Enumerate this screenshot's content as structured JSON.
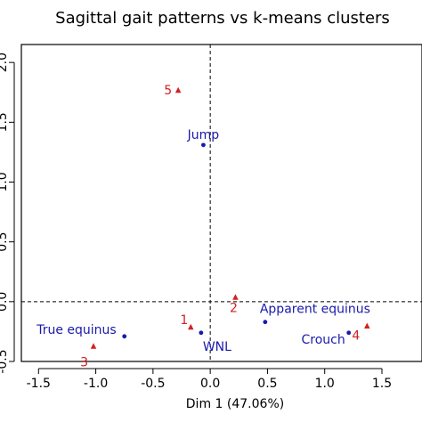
{
  "chart_data": {
    "type": "scatter",
    "title": "Sagittal gait patterns vs k-means clusters",
    "xlabel": "Dim 1 (47.06%)",
    "ylabel": "",
    "xlim": [
      -1.65,
      1.85
    ],
    "ylim": [
      -0.5,
      2.15
    ],
    "x_ticks": [
      -1.5,
      -1.0,
      -0.5,
      0.0,
      0.5,
      1.0,
      1.5
    ],
    "x_tick_labels": [
      "-1.5",
      "-1.0",
      "-0.5",
      "0.0",
      "0.5",
      "1.0",
      "1.5"
    ],
    "y_ticks": [
      -0.5,
      0.0,
      0.5,
      1.0,
      1.5,
      2.0
    ],
    "y_tick_labels": [
      "-0.5",
      "0.0",
      "0.5",
      "1.0",
      "1.5",
      "2.0"
    ],
    "reference_lines": {
      "x": 0,
      "y": 0,
      "style": "dashed"
    },
    "grid": false,
    "legend": "none",
    "series": [
      {
        "marker": "circle",
        "color": "#1a1aaa",
        "points": [
          {
            "label": "Jump",
            "x": -0.06,
            "y": 1.31
          },
          {
            "label": "True equinus",
            "x": -0.75,
            "y": -0.29
          },
          {
            "label": "WNL",
            "x": -0.08,
            "y": -0.26
          },
          {
            "label": "Apparent equinus",
            "x": 0.48,
            "y": -0.17
          },
          {
            "label": "Crouch",
            "x": 1.21,
            "y": -0.26
          }
        ]
      },
      {
        "marker": "triangle",
        "color": "#d42020",
        "points": [
          {
            "label": "5",
            "x": -0.28,
            "y": 1.77
          },
          {
            "label": "1",
            "x": -0.17,
            "y": -0.21
          },
          {
            "label": "2",
            "x": 0.22,
            "y": 0.04
          },
          {
            "label": "3",
            "x": -1.02,
            "y": -0.37
          },
          {
            "label": "4",
            "x": 1.37,
            "y": -0.2
          }
        ]
      }
    ]
  }
}
